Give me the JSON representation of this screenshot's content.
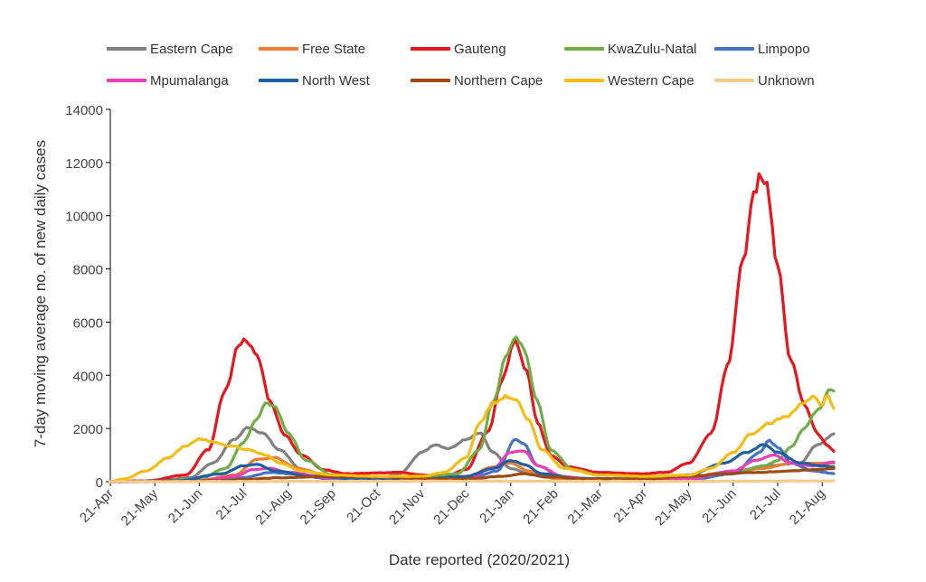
{
  "chart_data": {
    "type": "line",
    "title": "",
    "xlabel": "Date reported (2020/2021)",
    "ylabel": "7-day moving average no. of new daily cases",
    "ylim": [
      0,
      14000
    ],
    "yticks": [
      "0",
      "2000",
      "4000",
      "6000",
      "8000",
      "10000",
      "12000",
      "14000"
    ],
    "xticks": [
      "21-Apr",
      "21-May",
      "21-Jun",
      "21-Jul",
      "21-Aug",
      "21-Sep",
      "21-Oct",
      "21-Nov",
      "21-Dec",
      "21-Jan",
      "21-Feb",
      "21-Mar",
      "21-Apr",
      "21-May",
      "21-Jun",
      "21-Jul",
      "21-Aug"
    ],
    "x_units": "months since 21 Apr 2020",
    "xlim": [
      0,
      16.3
    ],
    "legend_position": "top",
    "grid": false,
    "series": [
      {
        "name": "Eastern Cape",
        "color": "#808080",
        "points": [
          [
            0,
            0
          ],
          [
            1,
            20
          ],
          [
            1.8,
            150
          ],
          [
            2.3,
            700
          ],
          [
            2.8,
            1600
          ],
          [
            3.1,
            2050
          ],
          [
            3.4,
            1850
          ],
          [
            3.8,
            1200
          ],
          [
            4.3,
            450
          ],
          [
            5,
            150
          ],
          [
            6,
            120
          ],
          [
            6.5,
            300
          ],
          [
            7,
            1100
          ],
          [
            7.3,
            1400
          ],
          [
            7.6,
            1250
          ],
          [
            8,
            1600
          ],
          [
            8.3,
            1850
          ],
          [
            8.6,
            1100
          ],
          [
            9,
            500
          ],
          [
            9.5,
            250
          ],
          [
            10.5,
            120
          ],
          [
            12,
            100
          ],
          [
            13,
            150
          ],
          [
            14,
            400
          ],
          [
            14.8,
            600
          ],
          [
            15.5,
            700
          ],
          [
            15.9,
            1400
          ],
          [
            16.3,
            1800
          ]
        ]
      },
      {
        "name": "Free State",
        "color": "#ED7D31",
        "points": [
          [
            0,
            0
          ],
          [
            2,
            50
          ],
          [
            2.8,
            250
          ],
          [
            3.3,
            850
          ],
          [
            3.7,
            900
          ],
          [
            4.2,
            500
          ],
          [
            5,
            150
          ],
          [
            6,
            100
          ],
          [
            7,
            120
          ],
          [
            8,
            200
          ],
          [
            8.6,
            550
          ],
          [
            9,
            700
          ],
          [
            9.4,
            400
          ],
          [
            10,
            120
          ],
          [
            11,
            80
          ],
          [
            12,
            100
          ],
          [
            13,
            200
          ],
          [
            14.1,
            400
          ],
          [
            14.7,
            500
          ],
          [
            15.3,
            700
          ],
          [
            15.8,
            700
          ],
          [
            16.3,
            700
          ]
        ]
      },
      {
        "name": "Gauteng",
        "color": "#E8151B",
        "points": [
          [
            0,
            0
          ],
          [
            0.8,
            30
          ],
          [
            1.7,
            250
          ],
          [
            2.2,
            1200
          ],
          [
            2.6,
            3500
          ],
          [
            2.9,
            5200
          ],
          [
            3.05,
            5350
          ],
          [
            3.3,
            4700
          ],
          [
            3.6,
            3000
          ],
          [
            3.9,
            1800
          ],
          [
            4.3,
            1000
          ],
          [
            4.8,
            450
          ],
          [
            5.3,
            300
          ],
          [
            6,
            330
          ],
          [
            6.5,
            350
          ],
          [
            7,
            250
          ],
          [
            7.5,
            200
          ],
          [
            8,
            450
          ],
          [
            8.5,
            1900
          ],
          [
            8.8,
            3800
          ],
          [
            9.1,
            5300
          ],
          [
            9.35,
            4200
          ],
          [
            9.6,
            2200
          ],
          [
            9.9,
            1000
          ],
          [
            10.3,
            550
          ],
          [
            11,
            350
          ],
          [
            12,
            300
          ],
          [
            12.5,
            350
          ],
          [
            13,
            700
          ],
          [
            13.5,
            1800
          ],
          [
            13.9,
            4500
          ],
          [
            14.2,
            8200
          ],
          [
            14.5,
            11000
          ],
          [
            14.6,
            11600
          ],
          [
            14.75,
            11200
          ],
          [
            15,
            8000
          ],
          [
            15.3,
            4500
          ],
          [
            15.6,
            2900
          ],
          [
            15.9,
            1800
          ],
          [
            16.1,
            1400
          ],
          [
            16.3,
            1100
          ]
        ]
      },
      {
        "name": "KwaZulu-Natal",
        "color": "#70AD47",
        "points": [
          [
            0,
            0
          ],
          [
            1,
            20
          ],
          [
            2,
            100
          ],
          [
            2.6,
            500
          ],
          [
            3,
            1500
          ],
          [
            3.3,
            2400
          ],
          [
            3.5,
            2950
          ],
          [
            3.7,
            2800
          ],
          [
            4,
            1800
          ],
          [
            4.4,
            800
          ],
          [
            5,
            250
          ],
          [
            6,
            150
          ],
          [
            7,
            150
          ],
          [
            7.8,
            300
          ],
          [
            8.3,
            1200
          ],
          [
            8.6,
            3000
          ],
          [
            8.9,
            4700
          ],
          [
            9.1,
            5500
          ],
          [
            9.3,
            5000
          ],
          [
            9.6,
            3000
          ],
          [
            9.9,
            1200
          ],
          [
            10.4,
            450
          ],
          [
            11,
            250
          ],
          [
            12,
            200
          ],
          [
            13,
            200
          ],
          [
            14,
            300
          ],
          [
            14.7,
            600
          ],
          [
            15,
            800
          ],
          [
            15.3,
            1300
          ],
          [
            15.6,
            2000
          ],
          [
            15.9,
            2700
          ],
          [
            16.2,
            3500
          ],
          [
            16.3,
            3400
          ]
        ]
      },
      {
        "name": "Limpopo",
        "color": "#4472C4",
        "points": [
          [
            0,
            0
          ],
          [
            2,
            20
          ],
          [
            3,
            150
          ],
          [
            3.6,
            350
          ],
          [
            4,
            300
          ],
          [
            5,
            100
          ],
          [
            6,
            50
          ],
          [
            8,
            60
          ],
          [
            8.7,
            400
          ],
          [
            9.1,
            1600
          ],
          [
            9.3,
            1400
          ],
          [
            9.6,
            600
          ],
          [
            10.2,
            150
          ],
          [
            11,
            50
          ],
          [
            13,
            60
          ],
          [
            14,
            300
          ],
          [
            14.6,
            1100
          ],
          [
            14.8,
            1550
          ],
          [
            15,
            1300
          ],
          [
            15.3,
            700
          ],
          [
            15.8,
            400
          ],
          [
            16.3,
            300
          ]
        ]
      },
      {
        "name": "Mpumalanga",
        "color": "#E83EB7",
        "points": [
          [
            0,
            0
          ],
          [
            2,
            30
          ],
          [
            2.8,
            200
          ],
          [
            3.2,
            450
          ],
          [
            3.6,
            500
          ],
          [
            4,
            350
          ],
          [
            5,
            120
          ],
          [
            6,
            60
          ],
          [
            8,
            100
          ],
          [
            8.6,
            500
          ],
          [
            9,
            1100
          ],
          [
            9.3,
            1150
          ],
          [
            9.6,
            600
          ],
          [
            10.2,
            180
          ],
          [
            11,
            80
          ],
          [
            13,
            100
          ],
          [
            14,
            400
          ],
          [
            14.5,
            800
          ],
          [
            14.9,
            1000
          ],
          [
            15.3,
            700
          ],
          [
            15.8,
            600
          ],
          [
            16.3,
            750
          ]
        ]
      },
      {
        "name": "North West",
        "color": "#1F5FA0",
        "points": [
          [
            0,
            0
          ],
          [
            1.5,
            30
          ],
          [
            2.5,
            300
          ],
          [
            3,
            600
          ],
          [
            3.3,
            650
          ],
          [
            3.7,
            400
          ],
          [
            4.5,
            200
          ],
          [
            5.5,
            120
          ],
          [
            7,
            100
          ],
          [
            8,
            200
          ],
          [
            8.6,
            500
          ],
          [
            9,
            800
          ],
          [
            9.3,
            650
          ],
          [
            9.7,
            300
          ],
          [
            10.5,
            120
          ],
          [
            12,
            100
          ],
          [
            13,
            250
          ],
          [
            13.8,
            700
          ],
          [
            14.3,
            1100
          ],
          [
            14.7,
            1400
          ],
          [
            15,
            1100
          ],
          [
            15.5,
            700
          ],
          [
            16,
            600
          ],
          [
            16.3,
            550
          ]
        ]
      },
      {
        "name": "Northern Cape",
        "color": "#9B4A14",
        "points": [
          [
            0,
            0
          ],
          [
            2,
            20
          ],
          [
            3,
            80
          ],
          [
            3.8,
            150
          ],
          [
            5,
            200
          ],
          [
            6,
            180
          ],
          [
            7,
            100
          ],
          [
            8,
            100
          ],
          [
            8.8,
            200
          ],
          [
            9.3,
            300
          ],
          [
            9.8,
            180
          ],
          [
            10.8,
            100
          ],
          [
            12,
            100
          ],
          [
            13,
            200
          ],
          [
            13.8,
            300
          ],
          [
            14.5,
            350
          ],
          [
            15.3,
            400
          ],
          [
            15.8,
            450
          ],
          [
            16.3,
            500
          ]
        ]
      },
      {
        "name": "Western Cape",
        "color": "#F5BD14",
        "points": [
          [
            0,
            0
          ],
          [
            0.3,
            100
          ],
          [
            0.8,
            400
          ],
          [
            1.3,
            900
          ],
          [
            1.7,
            1350
          ],
          [
            2,
            1600
          ],
          [
            2.3,
            1500
          ],
          [
            2.7,
            1350
          ],
          [
            3.1,
            1200
          ],
          [
            3.5,
            1000
          ],
          [
            3.8,
            700
          ],
          [
            4.3,
            400
          ],
          [
            5,
            250
          ],
          [
            6,
            200
          ],
          [
            7,
            200
          ],
          [
            7.5,
            350
          ],
          [
            8,
            900
          ],
          [
            8.3,
            2200
          ],
          [
            8.6,
            2950
          ],
          [
            8.9,
            3200
          ],
          [
            9.1,
            3100
          ],
          [
            9.4,
            2300
          ],
          [
            9.7,
            1200
          ],
          [
            10.2,
            500
          ],
          [
            11,
            250
          ],
          [
            12,
            200
          ],
          [
            13,
            250
          ],
          [
            13.5,
            500
          ],
          [
            14,
            1100
          ],
          [
            14.4,
            1800
          ],
          [
            14.8,
            2200
          ],
          [
            15.2,
            2450
          ],
          [
            15.6,
            3000
          ],
          [
            15.8,
            3200
          ],
          [
            16.0,
            2800
          ],
          [
            16.1,
            3250
          ],
          [
            16.3,
            2700
          ]
        ]
      },
      {
        "name": "Unknown",
        "color": "#F8CB8C",
        "points": [
          [
            0,
            0
          ],
          [
            3,
            10
          ],
          [
            6,
            20
          ],
          [
            9,
            20
          ],
          [
            12,
            10
          ],
          [
            14,
            20
          ],
          [
            16.3,
            30
          ]
        ]
      }
    ]
  }
}
